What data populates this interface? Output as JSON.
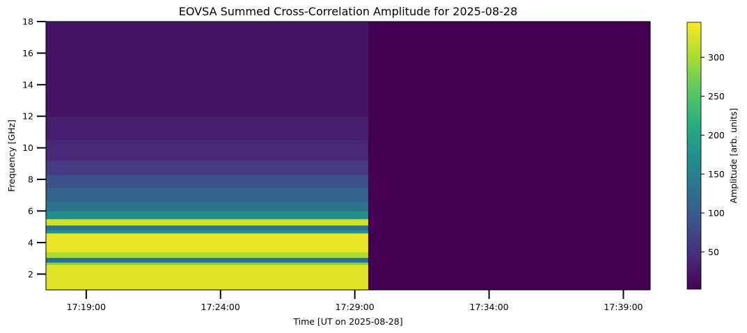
{
  "chart_data": {
    "type": "heatmap",
    "title": "EOVSA Summed Cross-Correlation Amplitude for 2025-08-28",
    "xlabel": "Time [UT on 2025-08-28]",
    "ylabel": "Frequency [GHz]",
    "x_ticks": [
      "17:19:00",
      "17:24:00",
      "17:29:00",
      "17:34:00",
      "17:39:00"
    ],
    "xlim": [
      "17:17:30",
      "17:40:00"
    ],
    "y_ticks": [
      2,
      4,
      6,
      8,
      10,
      12,
      14,
      16,
      18
    ],
    "ylim": [
      1.0,
      18.0
    ],
    "data_time_range": [
      "17:17:30",
      "17:29:30"
    ],
    "colorbar": {
      "label": "Amplitude [arb. units]",
      "ticks": [
        50,
        100,
        150,
        200,
        250,
        300
      ],
      "range": [
        2,
        345
      ],
      "colormap": "viridis"
    },
    "spectrum_profile": [
      {
        "freq_range": [
          1.0,
          2.6
        ],
        "amplitude": 330
      },
      {
        "freq_range": [
          2.6,
          2.75
        ],
        "amplitude": 280
      },
      {
        "freq_range": [
          2.75,
          3.05
        ],
        "amplitude": 130
      },
      {
        "freq_range": [
          3.05,
          3.4
        ],
        "amplitude": 300
      },
      {
        "freq_range": [
          3.4,
          4.6
        ],
        "amplitude": 335
      },
      {
        "freq_range": [
          4.6,
          4.8
        ],
        "amplitude": 180
      },
      {
        "freq_range": [
          4.8,
          5.1
        ],
        "amplitude": 130
      },
      {
        "freq_range": [
          5.1,
          5.5
        ],
        "amplitude": 320
      },
      {
        "freq_range": [
          5.5,
          6.0
        ],
        "amplitude": 170
      },
      {
        "freq_range": [
          6.0,
          6.6
        ],
        "amplitude": 130
      },
      {
        "freq_range": [
          6.6,
          7.5
        ],
        "amplitude": 110
      },
      {
        "freq_range": [
          7.5,
          8.3
        ],
        "amplitude": 85
      },
      {
        "freq_range": [
          8.3,
          9.2
        ],
        "amplitude": 60
      },
      {
        "freq_range": [
          9.2,
          10.5
        ],
        "amplitude": 40
      },
      {
        "freq_range": [
          10.5,
          12.0
        ],
        "amplitude": 30
      },
      {
        "freq_range": [
          12.0,
          18.0
        ],
        "amplitude": 20
      }
    ]
  }
}
